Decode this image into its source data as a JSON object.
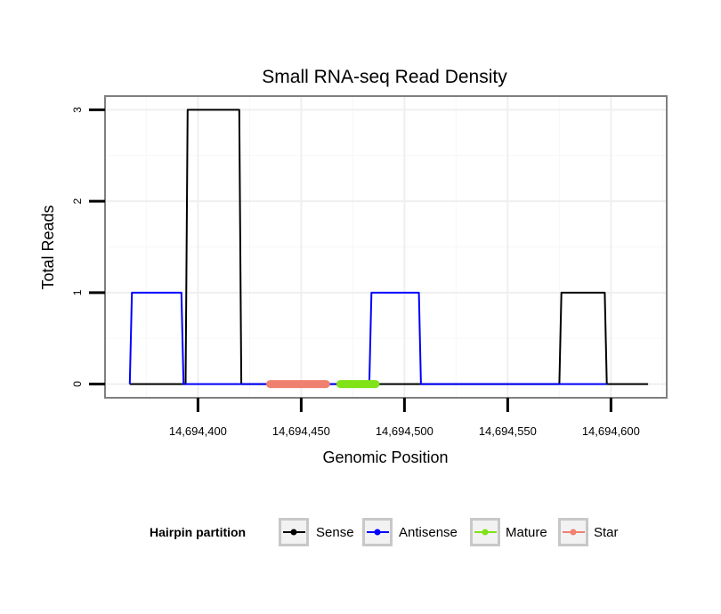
{
  "chart_data": {
    "type": "line",
    "title": "Small RNA-seq Read Density",
    "xlabel": "Genomic Position",
    "ylabel": "Total Reads",
    "xlim": [
      14694355,
      14694627
    ],
    "ylim": [
      -0.15,
      3.15
    ],
    "x_ticks": [
      14694400,
      14694450,
      14694500,
      14694550,
      14694600
    ],
    "x_tick_labels": [
      "14,694,400",
      "14,694,450",
      "14,694,500",
      "14,694,550",
      "14,694,600"
    ],
    "y_ticks": [
      0,
      1,
      2,
      3
    ],
    "y_tick_labels": [
      "0",
      "1",
      "2",
      "3"
    ],
    "grid": true,
    "series": [
      {
        "name": "Sense",
        "color": "#000000",
        "x": [
          14694367,
          14694394,
          14694395,
          14694420,
          14694421,
          14694575,
          14694576,
          14694597,
          14694598,
          14694618
        ],
        "y": [
          0,
          0,
          3,
          3,
          0,
          0,
          1,
          1,
          0,
          0
        ]
      },
      {
        "name": "Antisense",
        "color": "#0000FF",
        "x": [
          14694367,
          14694368,
          14694392,
          14694393,
          14694483,
          14694484,
          14694507,
          14694508,
          14694575,
          14694576,
          14694597,
          14694598
        ],
        "y": [
          0,
          1,
          1,
          0,
          0,
          1,
          1,
          0,
          0,
          0,
          0,
          0
        ]
      }
    ],
    "regions": [
      {
        "name": "Star",
        "color": "#F08070",
        "start": 14694435,
        "end": 14694462,
        "y": 0
      },
      {
        "name": "Mature",
        "color": "#7FE317",
        "start": 14694469,
        "end": 14694486,
        "y": 0
      }
    ],
    "legend": {
      "title": "Hairpin partition",
      "position": "bottom",
      "entries": [
        {
          "label": "Sense",
          "color": "#000000"
        },
        {
          "label": "Antisense",
          "color": "#0000FF"
        },
        {
          "label": "Mature",
          "color": "#7FE317"
        },
        {
          "label": "Star",
          "color": "#F08070"
        }
      ]
    }
  }
}
